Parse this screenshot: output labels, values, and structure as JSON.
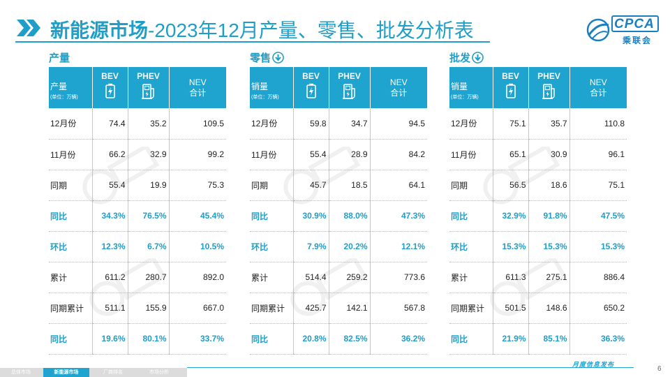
{
  "header": {
    "title_strong": "新能源市场",
    "title_rest": "-2023年12月产量、零售、批发分析表",
    "logo_text": "CPCA",
    "logo_sub": "乘联会"
  },
  "colors": {
    "accent": "#1fa3cf",
    "title": "#1f9ec8",
    "logo": "#1a7fc1"
  },
  "icons": {
    "title": "double-chevron-icon",
    "download": "download-arrow-icon",
    "bev": "battery-icon",
    "phev": "fuel-plug-icon"
  },
  "column_headers": {
    "bev": "BEV",
    "phev": "PHEV",
    "nev_line1": "NEV",
    "nev_line2": "合计",
    "unit": "(单位：万辆)"
  },
  "sections": [
    {
      "label": "产量",
      "first_col": "产量",
      "rows": [
        {
          "label": "12月份",
          "bev": "74.4",
          "phev": "35.2",
          "nev": "109.5",
          "highlight": false
        },
        {
          "label": "11月份",
          "bev": "66.2",
          "phev": "32.9",
          "nev": "99.2",
          "highlight": false
        },
        {
          "label": "同期",
          "bev": "55.4",
          "phev": "19.9",
          "nev": "75.3",
          "highlight": false
        },
        {
          "label": "同比",
          "bev": "34.3%",
          "phev": "76.5%",
          "nev": "45.4%",
          "highlight": true
        },
        {
          "label": "环比",
          "bev": "12.3%",
          "phev": "6.7%",
          "nev": "10.5%",
          "highlight": true
        },
        {
          "label": "累计",
          "bev": "611.2",
          "phev": "280.7",
          "nev": "892.0",
          "highlight": false
        },
        {
          "label": "同期累计",
          "bev": "511.1",
          "phev": "155.9",
          "nev": "667.0",
          "highlight": false
        },
        {
          "label": "同比",
          "bev": "19.6%",
          "phev": "80.1%",
          "nev": "33.7%",
          "highlight": true
        }
      ]
    },
    {
      "label": "零售",
      "first_col": "销量",
      "rows": [
        {
          "label": "12月份",
          "bev": "59.8",
          "phev": "34.7",
          "nev": "94.5",
          "highlight": false
        },
        {
          "label": "11月份",
          "bev": "55.4",
          "phev": "28.9",
          "nev": "84.2",
          "highlight": false
        },
        {
          "label": "同期",
          "bev": "45.7",
          "phev": "18.5",
          "nev": "64.1",
          "highlight": false
        },
        {
          "label": "同比",
          "bev": "30.9%",
          "phev": "88.0%",
          "nev": "47.3%",
          "highlight": true
        },
        {
          "label": "环比",
          "bev": "7.9%",
          "phev": "20.2%",
          "nev": "12.1%",
          "highlight": true
        },
        {
          "label": "累计",
          "bev": "514.4",
          "phev": "259.2",
          "nev": "773.6",
          "highlight": false
        },
        {
          "label": "同期累计",
          "bev": "425.7",
          "phev": "142.1",
          "nev": "567.8",
          "highlight": false
        },
        {
          "label": "同比",
          "bev": "20.8%",
          "phev": "82.5%",
          "nev": "36.2%",
          "highlight": true
        }
      ]
    },
    {
      "label": "批发",
      "first_col": "销量",
      "rows": [
        {
          "label": "12月份",
          "bev": "75.1",
          "phev": "35.7",
          "nev": "110.8",
          "highlight": false
        },
        {
          "label": "11月份",
          "bev": "65.1",
          "phev": "30.9",
          "nev": "96.1",
          "highlight": false
        },
        {
          "label": "同期",
          "bev": "56.5",
          "phev": "18.6",
          "nev": "75.1",
          "highlight": false
        },
        {
          "label": "同比",
          "bev": "32.9%",
          "phev": "91.8%",
          "nev": "47.5%",
          "highlight": true
        },
        {
          "label": "环比",
          "bev": "15.3%",
          "phev": "15.3%",
          "nev": "15.3%",
          "highlight": true
        },
        {
          "label": "累计",
          "bev": "611.3",
          "phev": "275.1",
          "nev": "886.4",
          "highlight": false
        },
        {
          "label": "同期累计",
          "bev": "501.5",
          "phev": "148.6",
          "nev": "650.2",
          "highlight": false
        },
        {
          "label": "同比",
          "bev": "21.9%",
          "phev": "85.1%",
          "nev": "36.3%",
          "highlight": true
        }
      ]
    }
  ],
  "footer": {
    "tabs": [
      "总体市场",
      "新能源市场",
      "厂商排名",
      "市场分析"
    ],
    "active_tab": 1,
    "slogan": "月度信息发布",
    "page": "6"
  }
}
